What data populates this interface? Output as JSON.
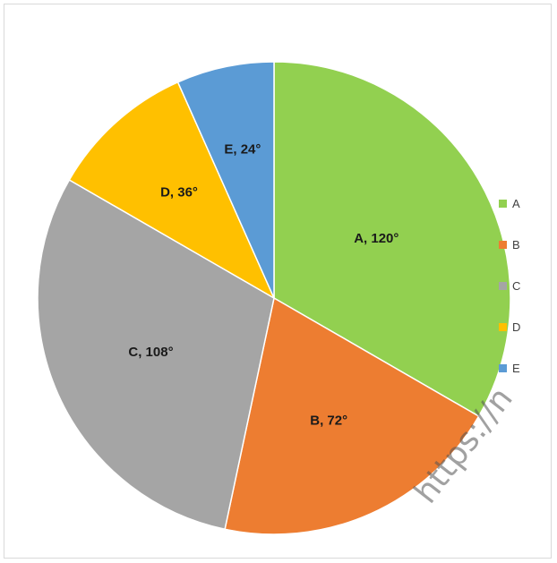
{
  "chart_data": {
    "type": "pie",
    "unit": "°",
    "slices": [
      {
        "label": "A",
        "value": 120,
        "data_label": "A, 120°",
        "color": "#92d050"
      },
      {
        "label": "B",
        "value": 72,
        "data_label": "B, 72°",
        "color": "#ed7d31"
      },
      {
        "label": "C",
        "value": 108,
        "data_label": "C, 108°",
        "color": "#a5a5a5"
      },
      {
        "label": "D",
        "value": 36,
        "data_label": "D, 36°",
        "color": "#ffc000"
      },
      {
        "label": "E",
        "value": 24,
        "data_label": "E, 24°",
        "color": "#5b9bd5"
      }
    ],
    "start_angle": "12 o'clock",
    "direction": "clockwise",
    "legend": {
      "position": "right",
      "entries": [
        "A",
        "B",
        "C",
        "D",
        "E"
      ]
    }
  },
  "watermark": {
    "text": "https://n"
  }
}
